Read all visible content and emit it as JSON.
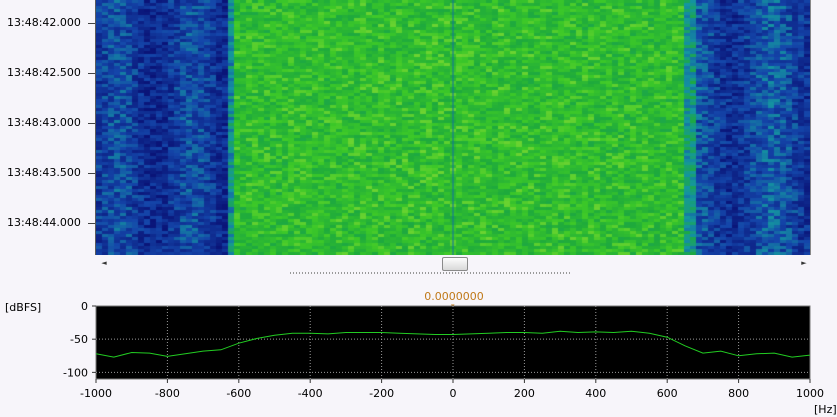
{
  "waterfall": {
    "time_labels": [
      "13:48:42.000",
      "13:48:42.500",
      "13:48:43.000",
      "13:48:43.500",
      "13:48:44.000"
    ]
  },
  "scrollbar": {
    "left_arrow": "◄",
    "right_arrow": "►"
  },
  "marker": {
    "value": "0.0000000",
    "caret": "▾"
  },
  "spectrum": {
    "y_unit": "[dBFS]",
    "x_unit": "[Hz]",
    "y_ticks": [
      "0",
      "-50",
      "-100"
    ],
    "x_ticks": [
      "-1000",
      "-800",
      "-600",
      "-400",
      "-200",
      "0",
      "200",
      "400",
      "600",
      "800",
      "1000"
    ]
  },
  "chart_data": {
    "type": "line",
    "xlabel": "[Hz]",
    "ylabel": "[dBFS]",
    "xlim": [
      -1000,
      1000
    ],
    "ylim": [
      -110,
      0
    ],
    "grid": true,
    "line_color": "#22cc22",
    "x": [
      -1000,
      -950,
      -900,
      -850,
      -800,
      -750,
      -700,
      -650,
      -600,
      -550,
      -500,
      -450,
      -400,
      -350,
      -300,
      -250,
      -200,
      -150,
      -100,
      -50,
      0,
      50,
      100,
      150,
      200,
      250,
      300,
      350,
      400,
      450,
      500,
      550,
      600,
      650,
      700,
      750,
      800,
      850,
      900,
      950,
      1000
    ],
    "y": [
      -72,
      -77,
      -70,
      -71,
      -76,
      -72,
      -68,
      -66,
      -56,
      -49,
      -44,
      -41,
      -41,
      -42,
      -40,
      -40,
      -40,
      -41,
      -42,
      -43,
      -43,
      -42,
      -41,
      -40,
      -40,
      -41,
      -38,
      -40,
      -39,
      -40,
      -38,
      -41,
      -47,
      -60,
      -71,
      -68,
      -75,
      -72,
      -71,
      -77,
      -74
    ]
  }
}
